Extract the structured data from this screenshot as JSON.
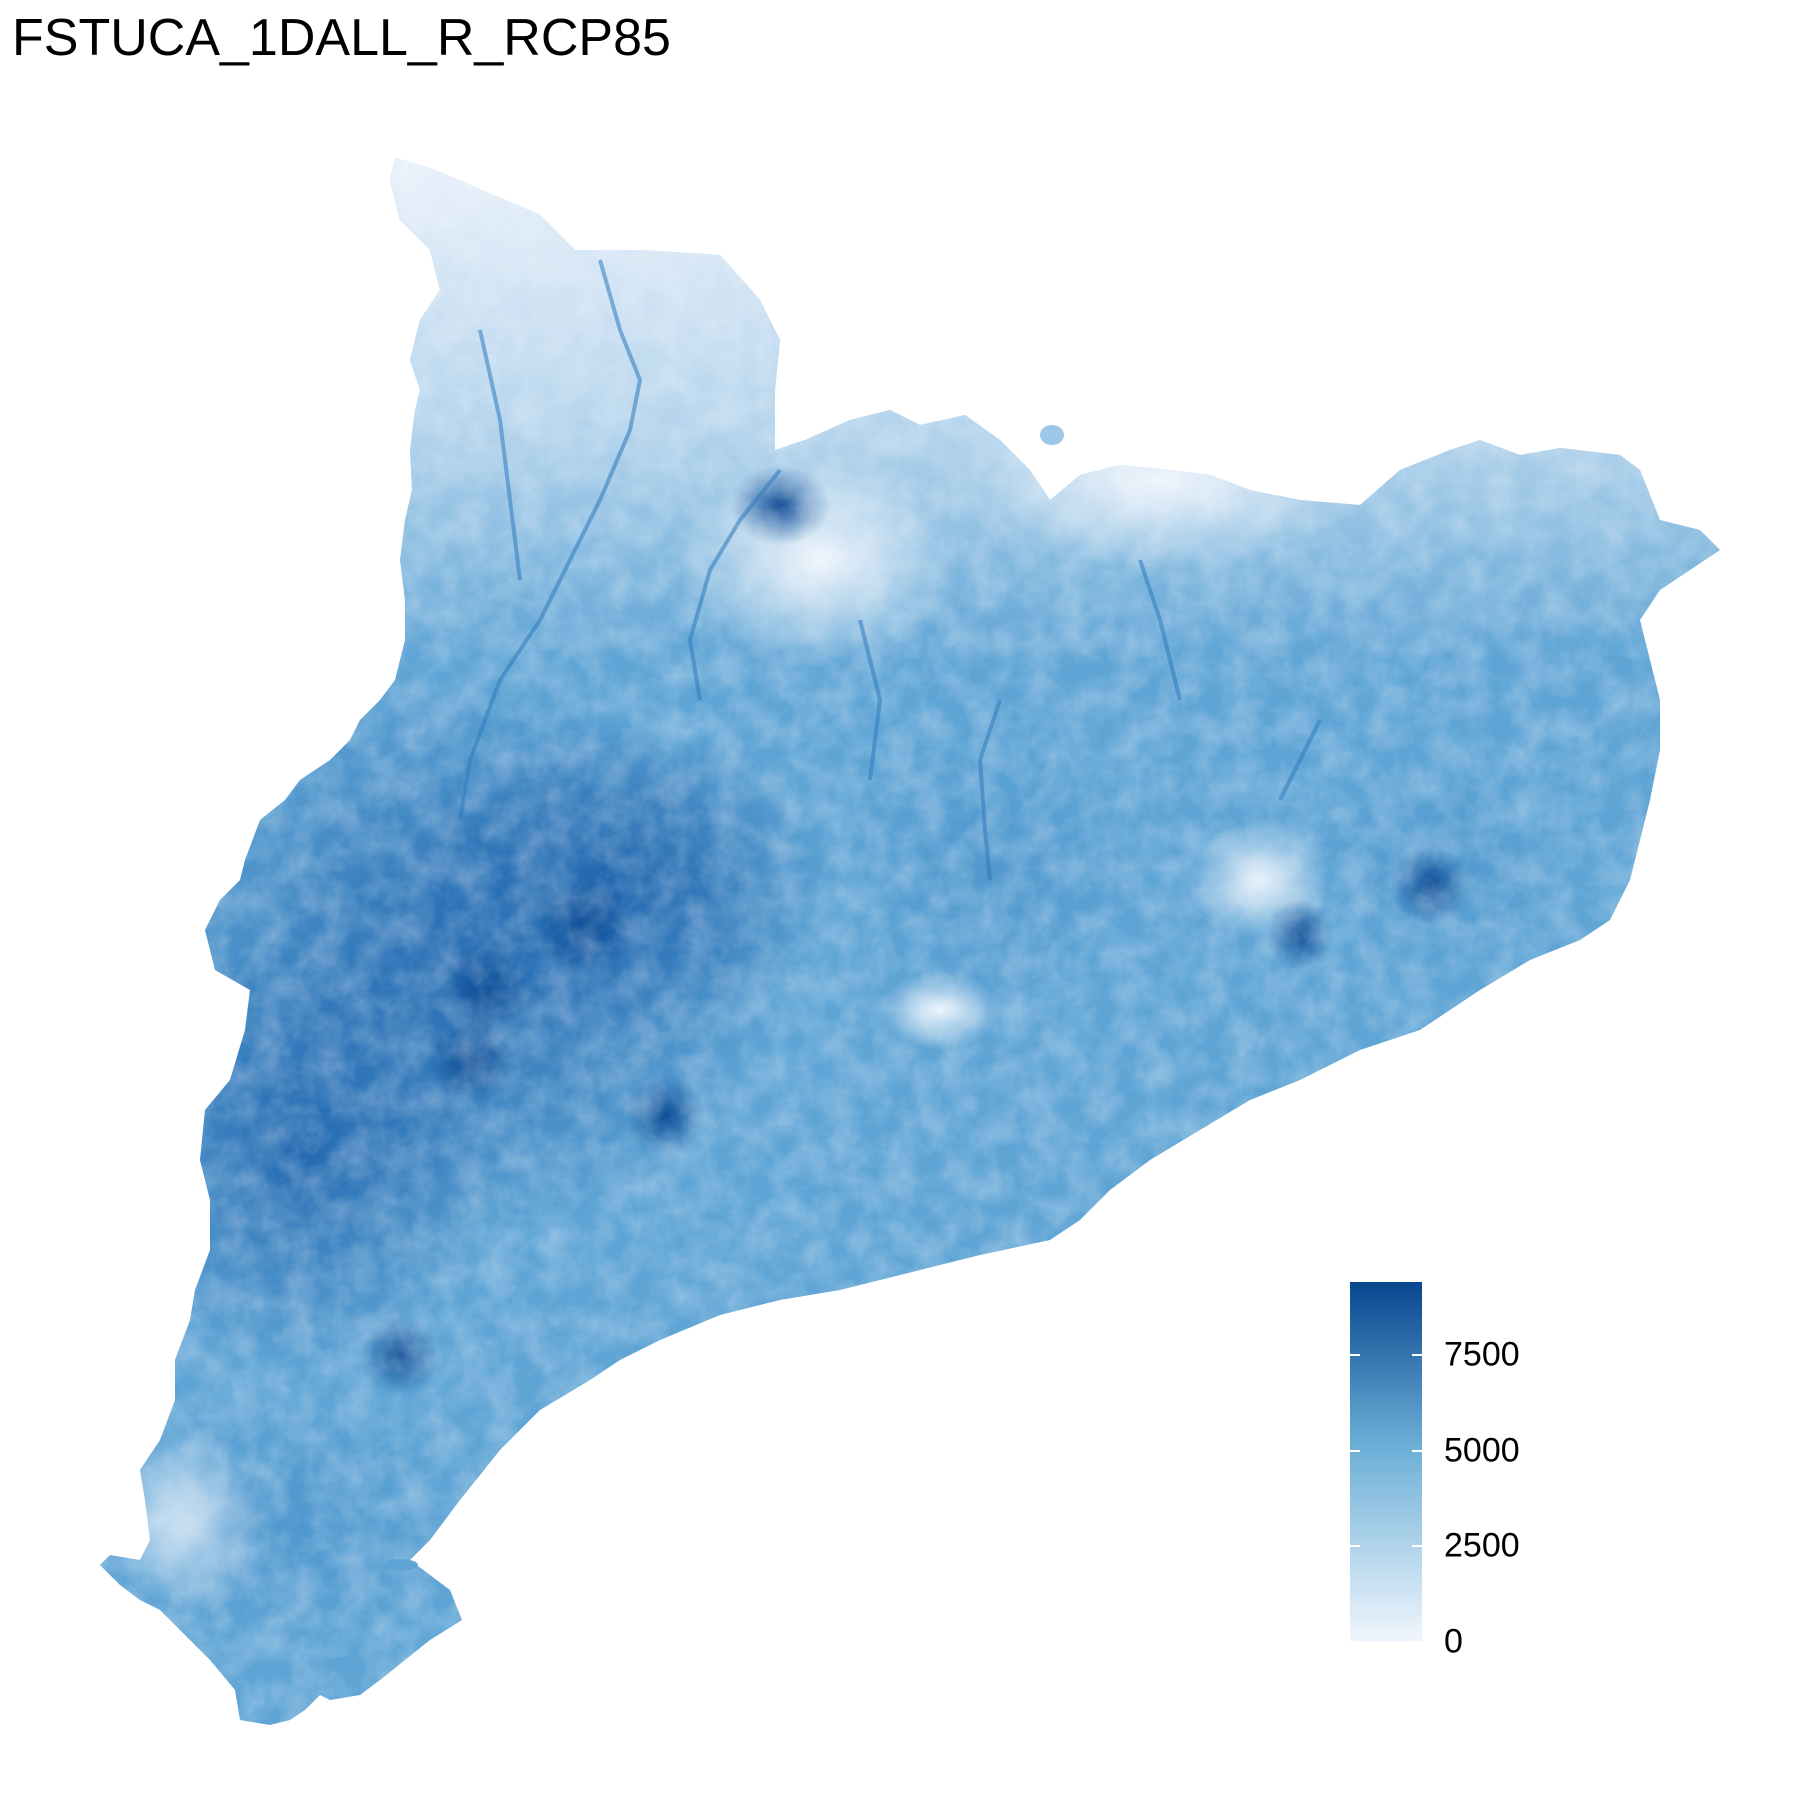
{
  "title": "FSTUCA_1DALL_R_RCP85",
  "colors": {
    "low": "#f1f6fd",
    "mid": "#6aaed6",
    "high": "#08468f"
  },
  "legend": {
    "min": 0,
    "max": 9400,
    "breaks": [
      {
        "value": 0,
        "label": "0"
      },
      {
        "value": 2500,
        "label": "2500"
      },
      {
        "value": 5000,
        "label": "5000"
      },
      {
        "value": 7500,
        "label": "7500"
      }
    ]
  }
}
